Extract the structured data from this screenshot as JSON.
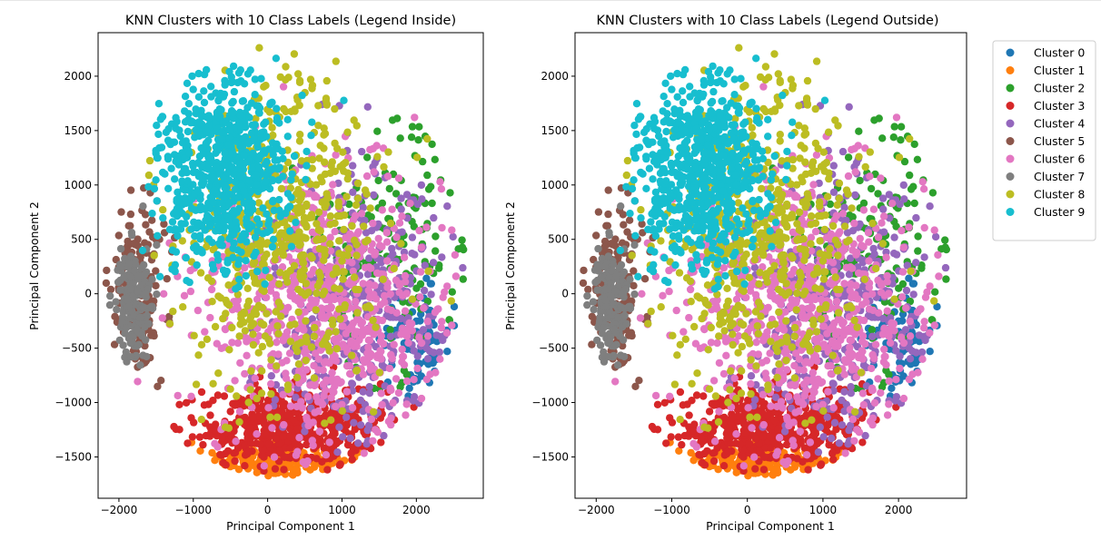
{
  "chart_data": [
    {
      "type": "scatter",
      "title": "KNN Clusters with 10 Class Labels (Legend Inside)",
      "xlabel": "Principal Component 1",
      "ylabel": "Principal Component 2",
      "xlim": [
        -2280,
        2900
      ],
      "ylim": [
        -1880,
        2400
      ],
      "xticks": [
        -2000,
        -1000,
        0,
        1000,
        2000
      ],
      "yticks": [
        -1500,
        -1000,
        -500,
        0,
        500,
        1000,
        1500,
        2000
      ],
      "xtick_labels": [
        "−2000",
        "−1000",
        "0",
        "1000",
        "2000"
      ],
      "ytick_labels": [
        "−1500",
        "−1000",
        "−500",
        "0",
        "500",
        "1000",
        "1500",
        "2000"
      ],
      "legend": "none"
    },
    {
      "type": "scatter",
      "title": "KNN Clusters with 10 Class Labels (Legend Outside)",
      "xlabel": "Principal Component 1",
      "ylabel": "Principal Component 2",
      "xlim": [
        -2280,
        2900
      ],
      "ylim": [
        -1880,
        2400
      ],
      "xticks": [
        -2000,
        -1000,
        0,
        1000,
        2000
      ],
      "yticks": [
        -1500,
        -1000,
        -500,
        0,
        500,
        1000,
        1500,
        2000
      ],
      "xtick_labels": [
        "−2000",
        "−1000",
        "0",
        "1000",
        "2000"
      ],
      "ytick_labels": [
        "−1500",
        "−1000",
        "−500",
        "0",
        "500",
        "1000",
        "1500",
        "2000"
      ],
      "legend": "outside-right"
    }
  ],
  "clusters": [
    {
      "name": "Cluster 0",
      "color": "#1f77b4",
      "center": [
        2000,
        -450
      ],
      "spread": [
        220,
        260
      ],
      "n": 80
    },
    {
      "name": "Cluster 1",
      "color": "#ff7f0e",
      "center": [
        200,
        -1560
      ],
      "spread": [
        500,
        80
      ],
      "n": 190
    },
    {
      "name": "Cluster 2",
      "color": "#2ca02c",
      "center": [
        1700,
        400
      ],
      "spread": [
        500,
        600
      ],
      "n": 150
    },
    {
      "name": "Cluster 3",
      "color": "#d62728",
      "center": [
        350,
        -1230
      ],
      "spread": [
        650,
        190
      ],
      "n": 520
    },
    {
      "name": "Cluster 4",
      "color": "#9467bd",
      "center": [
        1200,
        -150
      ],
      "spread": [
        600,
        650
      ],
      "n": 420
    },
    {
      "name": "Cluster 5",
      "color": "#8c564b",
      "center": [
        -1750,
        0
      ],
      "spread": [
        180,
        400
      ],
      "n": 150
    },
    {
      "name": "Cluster 6",
      "color": "#e377c2",
      "center": [
        700,
        -200
      ],
      "spread": [
        800,
        620
      ],
      "n": 700
    },
    {
      "name": "Cluster 7",
      "color": "#7f7f7f",
      "center": [
        -1800,
        -100
      ],
      "spread": [
        120,
        280
      ],
      "n": 180
    },
    {
      "name": "Cluster 8",
      "color": "#bcbd22",
      "center": [
        200,
        500
      ],
      "spread": [
        650,
        750
      ],
      "n": 560
    },
    {
      "name": "Cluster 9",
      "color": "#17becf",
      "center": [
        -600,
        1150
      ],
      "spread": [
        450,
        450
      ],
      "n": 700
    }
  ]
}
